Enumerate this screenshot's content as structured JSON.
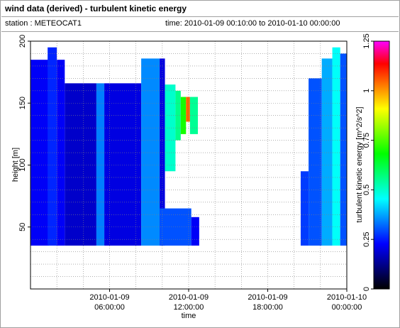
{
  "header": {
    "title": "wind data (derived) - turbulent kinetic energy",
    "station": "station : METEOCAT1",
    "time_range": "time: 2010-01-09 00:10:00 to 2010-01-10 00:00:00"
  },
  "chart_data": {
    "type": "heatmap",
    "xlabel": "time",
    "ylabel": "height [m]",
    "colorbar_label": "turbulent kinetic energy [m^2/s^2]",
    "x_unit": "hours since 2010-01-09 00:00:00",
    "xlim": [
      0,
      24
    ],
    "ylim": [
      0,
      200
    ],
    "x_ticks": [
      {
        "value": 6,
        "line1": "2010-01-09",
        "line2": "06:00:00"
      },
      {
        "value": 12,
        "line1": "2010-01-09",
        "line2": "12:00:00"
      },
      {
        "value": 18,
        "line1": "2010-01-09",
        "line2": "18:00:00"
      },
      {
        "value": 24,
        "line1": "2010-01-10",
        "line2": "00:00:00"
      }
    ],
    "y_ticks": [
      50,
      100,
      150,
      200
    ],
    "grid": true,
    "colorbar": {
      "min": 0,
      "max": 1.25,
      "ticks": [
        "0",
        "0.25",
        "0.5",
        "0.75",
        "1",
        "1.25"
      ],
      "colormap": [
        "#000000",
        "#000080",
        "#0000ff",
        "#0080ff",
        "#00ffff",
        "#00ff80",
        "#00ff00",
        "#80ff00",
        "#ffff00",
        "#ff8000",
        "#ff0000",
        "#ff00ff"
      ]
    },
    "blocks": [
      {
        "x0": 0.0,
        "x1": 1.4,
        "y0": 35,
        "y1": 185,
        "v": 0.22
      },
      {
        "x0": 1.3,
        "x1": 2.0,
        "y0": 35,
        "y1": 195,
        "v": 0.26
      },
      {
        "x0": 2.0,
        "x1": 2.6,
        "y0": 35,
        "y1": 185,
        "v": 0.22
      },
      {
        "x0": 2.6,
        "x1": 5.0,
        "y0": 35,
        "y1": 166,
        "v": 0.18
      },
      {
        "x0": 5.0,
        "x1": 5.6,
        "y0": 35,
        "y1": 166,
        "v": 0.34
      },
      {
        "x0": 5.6,
        "x1": 8.4,
        "y0": 35,
        "y1": 166,
        "v": 0.2
      },
      {
        "x0": 8.4,
        "x1": 9.8,
        "y0": 35,
        "y1": 186,
        "v": 0.35
      },
      {
        "x0": 9.8,
        "x1": 10.2,
        "y0": 35,
        "y1": 186,
        "v": 0.2
      },
      {
        "x0": 10.2,
        "x1": 11.0,
        "y0": 95,
        "y1": 165,
        "v": 0.5
      },
      {
        "x0": 11.0,
        "x1": 11.4,
        "y0": 120,
        "y1": 160,
        "v": 0.56
      },
      {
        "x0": 11.4,
        "x1": 11.8,
        "y0": 125,
        "y1": 155,
        "v": 0.7
      },
      {
        "x0": 11.8,
        "x1": 12.1,
        "y0": 135,
        "y1": 155,
        "v": 1.05
      },
      {
        "x0": 12.1,
        "x1": 12.7,
        "y0": 125,
        "y1": 155,
        "v": 0.55
      },
      {
        "x0": 9.8,
        "x1": 12.2,
        "y0": 35,
        "y1": 65,
        "v": 0.3
      },
      {
        "x0": 12.2,
        "x1": 12.8,
        "y0": 35,
        "y1": 58,
        "v": 0.22
      },
      {
        "x0": 20.5,
        "x1": 21.1,
        "y0": 35,
        "y1": 95,
        "v": 0.28
      },
      {
        "x0": 21.1,
        "x1": 22.1,
        "y0": 35,
        "y1": 170,
        "v": 0.3
      },
      {
        "x0": 22.1,
        "x1": 22.9,
        "y0": 35,
        "y1": 186,
        "v": 0.38
      },
      {
        "x0": 22.9,
        "x1": 23.5,
        "y0": 35,
        "y1": 195,
        "v": 0.46
      },
      {
        "x0": 23.5,
        "x1": 24.0,
        "y0": 35,
        "y1": 190,
        "v": 0.3
      }
    ]
  }
}
